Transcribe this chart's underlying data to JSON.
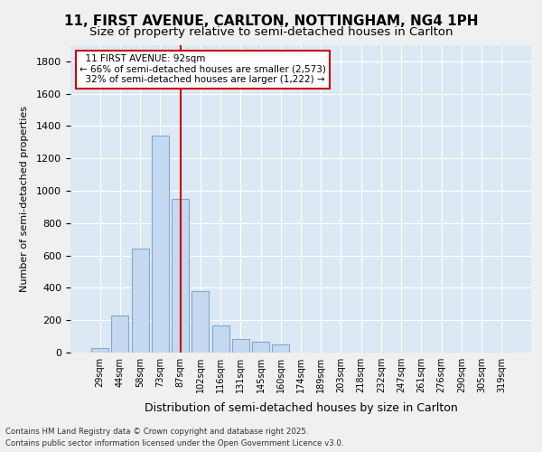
{
  "title_line1": "11, FIRST AVENUE, CARLTON, NOTTINGHAM, NG4 1PH",
  "title_line2": "Size of property relative to semi-detached houses in Carlton",
  "xlabel": "Distribution of semi-detached houses by size in Carlton",
  "ylabel": "Number of semi-detached properties",
  "bin_labels": [
    "29sqm",
    "44sqm",
    "58sqm",
    "73sqm",
    "87sqm",
    "102sqm",
    "116sqm",
    "131sqm",
    "145sqm",
    "160sqm",
    "174sqm",
    "189sqm",
    "203sqm",
    "218sqm",
    "232sqm",
    "247sqm",
    "261sqm",
    "276sqm",
    "290sqm",
    "305sqm",
    "319sqm"
  ],
  "bar_heights": [
    30,
    230,
    645,
    1340,
    950,
    380,
    165,
    85,
    65,
    50,
    0,
    0,
    0,
    0,
    0,
    0,
    0,
    0,
    0,
    0,
    0
  ],
  "bar_color": "#c5d9f0",
  "bar_edge_color": "#7faacc",
  "marker_value": 92,
  "marker_bin_index": 4,
  "marker_label": "11 FIRST AVENUE: 92sqm",
  "pct_smaller": 66,
  "count_smaller": 2573,
  "pct_larger": 32,
  "count_larger": 1222,
  "annotation_box_color": "#ffffff",
  "annotation_box_edge": "#cc0000",
  "vline_color": "#cc0000",
  "ylim": [
    0,
    1900
  ],
  "yticks": [
    0,
    200,
    400,
    600,
    800,
    1000,
    1200,
    1400,
    1600,
    1800
  ],
  "plot_bg_color": "#dce9f5",
  "fig_bg_color": "#f0f0f0",
  "footer_line1": "Contains HM Land Registry data © Crown copyright and database right 2025.",
  "footer_line2": "Contains public sector information licensed under the Open Government Licence v3.0."
}
